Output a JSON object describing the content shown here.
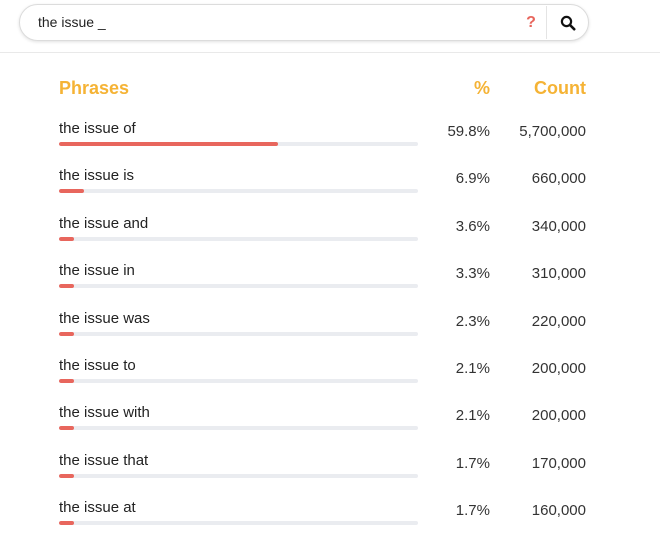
{
  "search": {
    "value": "the issue _",
    "help_label": "?",
    "search_icon": "search-icon"
  },
  "columns": {
    "phrase": "Phrases",
    "percent": "%",
    "count": "Count"
  },
  "colors": {
    "accent": "#f5b335",
    "bar": "#e8665d",
    "track": "#eaecf0"
  },
  "results": [
    {
      "phrase": "the issue of",
      "percent": "59.8%",
      "share": 59.8,
      "count": "5,700,000"
    },
    {
      "phrase": "the issue is",
      "percent": "6.9%",
      "share": 6.9,
      "count": "660,000"
    },
    {
      "phrase": "the issue and",
      "percent": "3.6%",
      "share": 3.6,
      "count": "340,000"
    },
    {
      "phrase": "the issue in",
      "percent": "3.3%",
      "share": 3.3,
      "count": "310,000"
    },
    {
      "phrase": "the issue was",
      "percent": "2.3%",
      "share": 2.3,
      "count": "220,000"
    },
    {
      "phrase": "the issue to",
      "percent": "2.1%",
      "share": 2.1,
      "count": "200,000"
    },
    {
      "phrase": "the issue with",
      "percent": "2.1%",
      "share": 2.1,
      "count": "200,000"
    },
    {
      "phrase": "the issue that",
      "percent": "1.7%",
      "share": 1.7,
      "count": "170,000"
    },
    {
      "phrase": "the issue at",
      "percent": "1.7%",
      "share": 1.7,
      "count": "160,000"
    }
  ]
}
